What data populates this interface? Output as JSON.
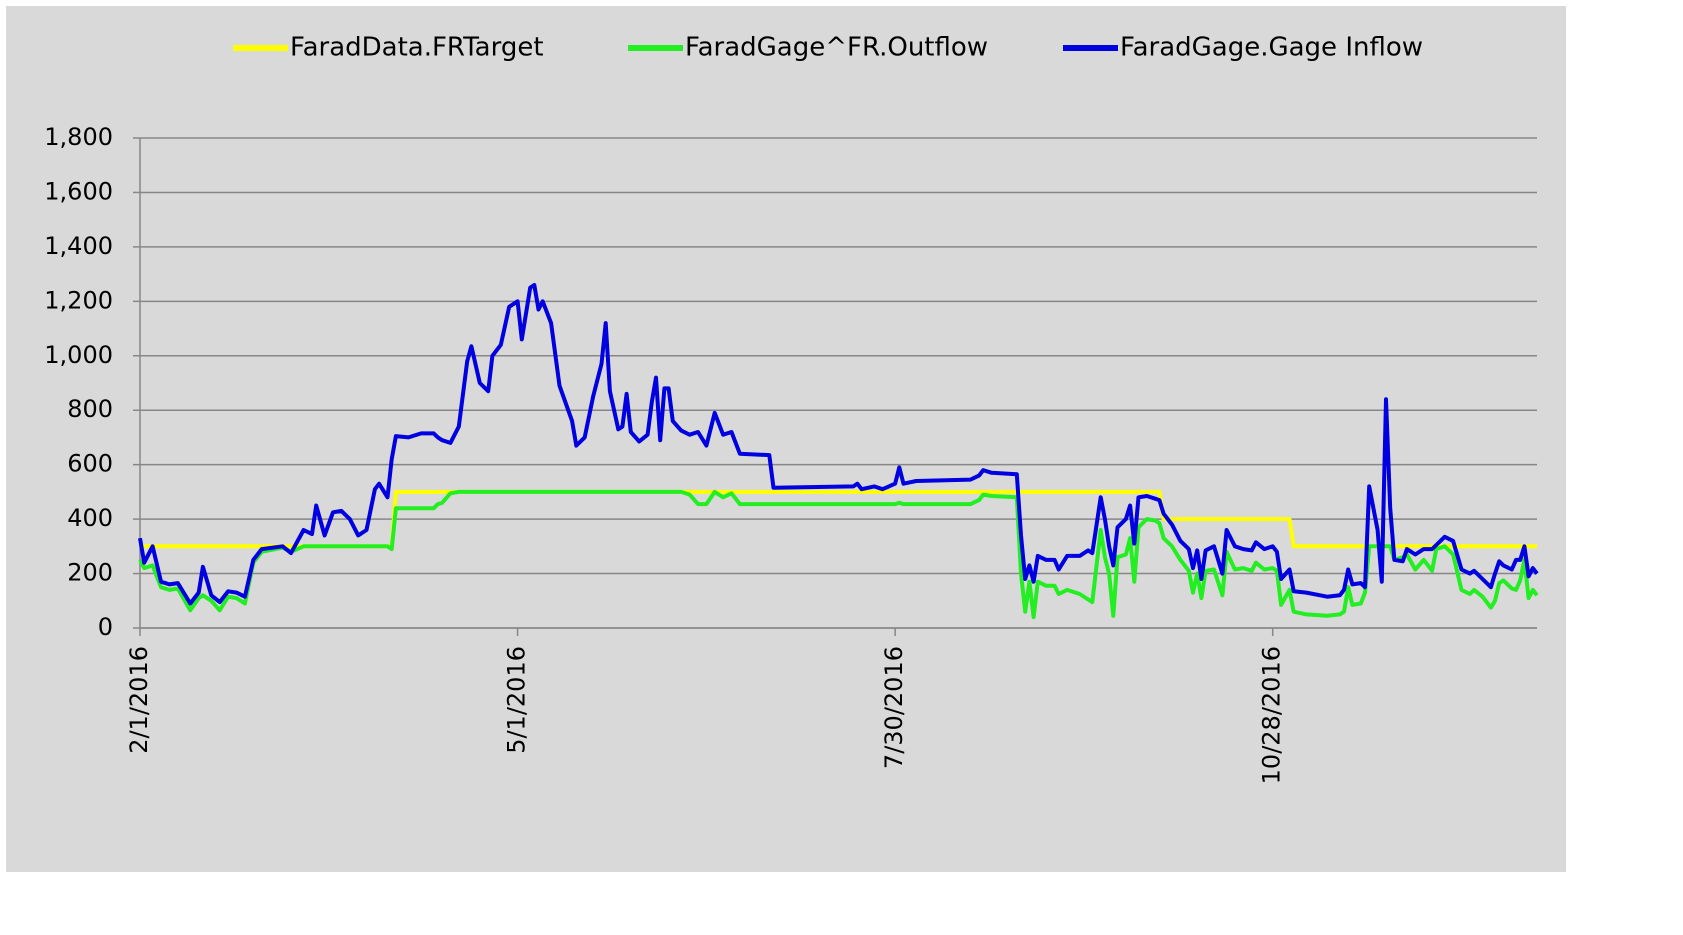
{
  "chart_data": {
    "type": "line",
    "x": [
      "2/1/2016",
      "2/2/2016",
      "2/4/2016",
      "2/6/2016",
      "2/8/2016",
      "2/10/2016",
      "2/13/2016",
      "2/15/2016",
      "2/16/2016",
      "2/18/2016",
      "2/20/2016",
      "2/22/2016",
      "2/24/2016",
      "2/26/2016",
      "2/28/2016",
      "3/1/2016",
      "3/6/2016",
      "3/8/2016",
      "3/11/2016",
      "3/13/2016",
      "3/14/2016",
      "3/16/2016",
      "3/18/2016",
      "3/20/2016",
      "3/22/2016",
      "3/24/2016",
      "3/26/2016",
      "3/28/2016",
      "3/29/2016",
      "3/31/2016",
      "4/1/2016",
      "4/2/2016",
      "4/5/2016",
      "4/8/2016",
      "4/11/2016",
      "4/12/2016",
      "4/13/2016",
      "4/15/2016",
      "4/17/2016",
      "4/19/2016",
      "4/20/2016",
      "4/22/2016",
      "4/24/2016",
      "4/25/2016",
      "4/27/2016",
      "4/29/2016",
      "5/1/2016",
      "5/2/2016",
      "5/4/2016",
      "5/5/2016",
      "5/6/2016",
      "5/7/2016",
      "5/9/2016",
      "5/11/2016",
      "5/14/2016",
      "5/15/2016",
      "5/17/2016",
      "5/19/2016",
      "5/21/2016",
      "5/22/2016",
      "5/23/2016",
      "5/25/2016",
      "5/26/2016",
      "5/27/2016",
      "5/28/2016",
      "5/30/2016",
      "6/1/2016",
      "6/2/2016",
      "6/3/2016",
      "6/4/2016",
      "6/5/2016",
      "6/6/2016",
      "6/7/2016",
      "6/9/2016",
      "6/11/2016",
      "6/13/2016",
      "6/15/2016",
      "6/17/2016",
      "6/19/2016",
      "6/21/2016",
      "6/23/2016",
      "6/30/2016",
      "7/1/2016",
      "7/20/2016",
      "7/21/2016",
      "7/22/2016",
      "7/25/2016",
      "7/27/2016",
      "7/30/2016",
      "7/31/2016",
      "8/1/2016",
      "8/4/2016",
      "8/17/2016",
      "8/19/2016",
      "8/20/2016",
      "8/22/2016",
      "8/28/2016",
      "8/29/2016",
      "8/30/2016",
      "8/31/2016",
      "9/1/2016",
      "9/2/2016",
      "9/4/2016",
      "9/6/2016",
      "9/7/2016",
      "9/9/2016",
      "9/12/2016",
      "9/14/2016",
      "9/15/2016",
      "9/17/2016",
      "9/18/2016",
      "9/19/2016",
      "9/20/2016",
      "9/21/2016",
      "9/23/2016",
      "9/24/2016",
      "9/25/2016",
      "9/26/2016",
      "9/28/2016",
      "9/30/2016",
      "10/1/2016",
      "10/2/2016",
      "10/4/2016",
      "10/6/2016",
      "10/8/2016",
      "10/9/2016",
      "10/10/2016",
      "10/11/2016",
      "10/12/2016",
      "10/14/2016",
      "10/16/2016",
      "10/17/2016",
      "10/19/2016",
      "10/21/2016",
      "10/23/2016",
      "10/24/2016",
      "10/26/2016",
      "10/28/2016",
      "10/29/2016",
      "10/30/2016",
      "11/1/2016",
      "11/2/2016",
      "11/5/2016",
      "11/10/2016",
      "11/13/2016",
      "11/14/2016",
      "11/15/2016",
      "11/16/2016",
      "11/18/2016",
      "11/19/2016",
      "11/20/2016",
      "11/22/2016",
      "11/23/2016",
      "11/24/2016",
      "11/25/2016",
      "11/26/2016",
      "11/28/2016",
      "11/29/2016",
      "12/1/2016",
      "12/3/2016",
      "12/5/2016",
      "12/6/2016",
      "12/8/2016",
      "12/10/2016",
      "12/12/2016",
      "12/14/2016",
      "12/15/2016",
      "12/17/2016",
      "12/19/2016",
      "12/20/2016",
      "12/21/2016",
      "12/22/2016",
      "12/24/2016",
      "12/25/2016",
      "12/26/2016",
      "12/27/2016",
      "12/28/2016",
      "12/29/2016",
      "12/30/2016"
    ],
    "series": [
      {
        "name": "FaradData.FRTarget",
        "color": "#ffff00",
        "values": [
          300,
          300,
          300,
          300,
          300,
          300,
          300,
          300,
          300,
          300,
          300,
          300,
          300,
          300,
          300,
          300,
          300,
          300,
          300,
          300,
          300,
          300,
          300,
          300,
          300,
          300,
          300,
          300,
          300,
          300,
          300,
          500,
          500,
          500,
          500,
          500,
          500,
          500,
          500,
          500,
          500,
          500,
          500,
          500,
          500,
          500,
          500,
          500,
          500,
          500,
          500,
          500,
          500,
          500,
          500,
          500,
          500,
          500,
          500,
          500,
          500,
          500,
          500,
          500,
          500,
          500,
          500,
          500,
          500,
          500,
          500,
          500,
          500,
          500,
          500,
          500,
          500,
          500,
          500,
          500,
          500,
          500,
          500,
          500,
          500,
          500,
          500,
          500,
          500,
          500,
          500,
          500,
          500,
          500,
          500,
          500,
          500,
          500,
          500,
          500,
          500,
          500,
          500,
          500,
          500,
          500,
          500,
          500,
          500,
          500,
          500,
          500,
          500,
          500,
          500,
          500,
          500,
          500,
          500,
          500,
          500,
          400,
          400,
          400,
          400,
          400,
          400,
          400,
          400,
          400,
          400,
          400,
          400,
          400,
          400,
          400,
          400,
          400,
          400,
          400,
          400,
          300,
          300,
          300,
          300,
          300,
          300,
          300,
          300,
          300,
          300,
          300,
          300,
          300,
          300,
          300,
          300,
          300,
          300,
          300,
          300,
          300,
          300,
          300,
          300,
          300,
          300,
          300,
          300,
          300,
          300,
          300,
          300,
          300,
          300,
          300,
          300,
          300,
          300
        ]
      },
      {
        "name": "FaradGage^FR.Outflow",
        "color": "#22ee22",
        "values": [
          250,
          220,
          230,
          150,
          140,
          145,
          65,
          110,
          120,
          100,
          65,
          115,
          110,
          90,
          240,
          280,
          295,
          280,
          300,
          300,
          300,
          300,
          300,
          300,
          300,
          300,
          300,
          300,
          300,
          300,
          290,
          440,
          440,
          440,
          440,
          455,
          460,
          495,
          500,
          500,
          500,
          500,
          500,
          500,
          500,
          500,
          500,
          500,
          500,
          500,
          500,
          500,
          500,
          500,
          500,
          500,
          500,
          500,
          500,
          500,
          500,
          500,
          500,
          500,
          500,
          500,
          500,
          500,
          500,
          500,
          500,
          500,
          500,
          500,
          490,
          455,
          455,
          500,
          480,
          495,
          455,
          455,
          455,
          455,
          455,
          455,
          455,
          455,
          455,
          460,
          455,
          455,
          455,
          470,
          490,
          485,
          480,
          200,
          60,
          170,
          40,
          170,
          155,
          155,
          125,
          140,
          125,
          105,
          95,
          360,
          260,
          200,
          45,
          260,
          270,
          330,
          170,
          370,
          400,
          395,
          385,
          330,
          300,
          250,
          210,
          130,
          200,
          110,
          210,
          215,
          120,
          280,
          215,
          220,
          210,
          240,
          215,
          220,
          210,
          85,
          140,
          60,
          50,
          45,
          50,
          60,
          150,
          85,
          90,
          130,
          300,
          300,
          300,
          300,
          300,
          250,
          260,
          270,
          215,
          250,
          210,
          290,
          300,
          270,
          140,
          125,
          140,
          115,
          75,
          100,
          165,
          175,
          145,
          140,
          175,
          250,
          110,
          140,
          120
        ]
      },
      {
        "name": "FaradGage.Gage Inflow",
        "color": "#0000e0",
        "values": [
          330,
          240,
          300,
          170,
          160,
          165,
          90,
          130,
          225,
          120,
          95,
          135,
          130,
          115,
          250,
          290,
          300,
          275,
          360,
          345,
          450,
          340,
          425,
          430,
          400,
          340,
          360,
          510,
          530,
          480,
          620,
          705,
          700,
          715,
          715,
          700,
          690,
          680,
          740,
          980,
          1035,
          900,
          870,
          1000,
          1040,
          1180,
          1200,
          1060,
          1250,
          1260,
          1170,
          1200,
          1120,
          890,
          760,
          670,
          700,
          850,
          970,
          1120,
          870,
          730,
          740,
          860,
          720,
          685,
          710,
          830,
          920,
          690,
          880,
          880,
          760,
          725,
          710,
          720,
          670,
          790,
          710,
          720,
          640,
          635,
          515,
          520,
          530,
          510,
          520,
          510,
          530,
          590,
          530,
          540,
          545,
          560,
          580,
          570,
          565,
          340,
          180,
          230,
          170,
          265,
          250,
          250,
          215,
          265,
          265,
          285,
          275,
          480,
          400,
          300,
          230,
          370,
          400,
          450,
          310,
          480,
          485,
          475,
          470,
          420,
          380,
          320,
          290,
          220,
          285,
          180,
          285,
          300,
          200,
          360,
          300,
          290,
          285,
          315,
          290,
          300,
          280,
          180,
          215,
          135,
          130,
          115,
          120,
          140,
          215,
          160,
          165,
          150,
          520,
          360,
          170,
          840,
          440,
          250,
          245,
          290,
          270,
          290,
          290,
          305,
          335,
          320,
          215,
          200,
          210,
          180,
          150,
          200,
          245,
          230,
          215,
          250,
          250,
          300,
          190,
          220,
          200
        ]
      }
    ],
    "xlim": [
      "2/1/2016",
      "12/30/2016"
    ],
    "xticks": [
      "2/1/2016",
      "5/1/2016",
      "7/30/2016",
      "10/28/2016"
    ],
    "ylim": [
      0,
      1800
    ],
    "yticks": [
      0,
      200,
      400,
      600,
      800,
      {
        "value": 1000,
        "label": "1,000"
      },
      {
        "value": 1200,
        "label": "1,200"
      },
      {
        "value": 1400,
        "label": "1,400"
      },
      {
        "value": 1600,
        "label": "1,600"
      },
      {
        "value": 1800,
        "label": "1,800"
      }
    ],
    "grid": true,
    "legend": "top"
  }
}
